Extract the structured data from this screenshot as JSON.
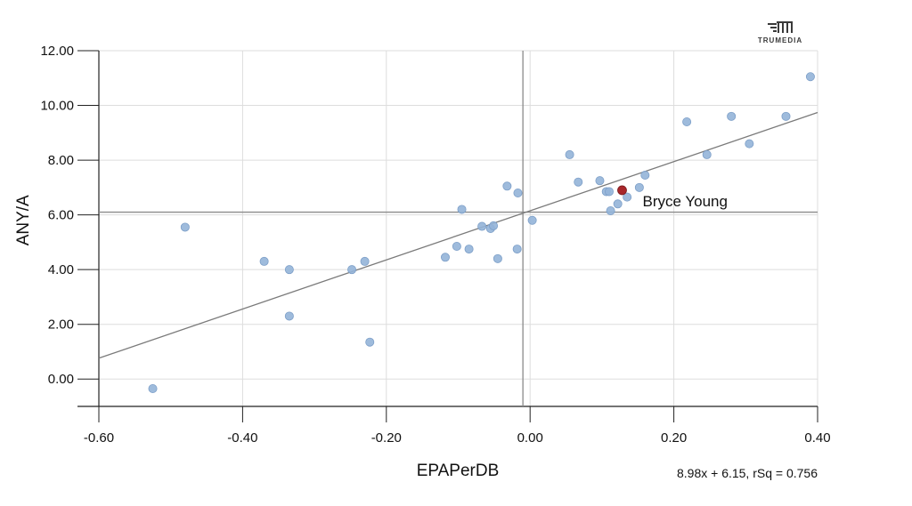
{
  "logo": {
    "text": "TRUMEDIA"
  },
  "chart_data": {
    "type": "scatter",
    "xlabel": "EPAPerDB",
    "ylabel": "ANY/A",
    "xlim": [
      -0.6,
      0.4
    ],
    "ylim": [
      -1.0,
      12.0
    ],
    "x_ticks": [
      -0.6,
      -0.4,
      -0.2,
      0.0,
      0.2,
      0.4
    ],
    "x_tick_labels": [
      "-0.60",
      "-0.40",
      "-0.20",
      "0.00",
      "0.20",
      "0.40"
    ],
    "y_ticks": [
      0,
      2,
      4,
      6,
      8,
      10,
      12
    ],
    "y_tick_labels": [
      "0.00",
      "2.00",
      "4.00",
      "6.00",
      "8.00",
      "10.00",
      "12.00"
    ],
    "grid": true,
    "mean_lines": {
      "x": -0.01,
      "y": 6.1
    },
    "trendline": {
      "slope": 8.98,
      "intercept": 6.15,
      "label": "8.98x + 6.15, rSq = 0.756"
    },
    "colors": {
      "points": "#94b4d8",
      "highlight": "#a8262a",
      "trend": "#7a7a7a",
      "grid": "#dddddd",
      "axis": "#222222"
    },
    "highlight": {
      "label": "Bryce Young",
      "x": 0.128,
      "y": 6.9
    },
    "points": [
      {
        "x": -0.525,
        "y": -0.35
      },
      {
        "x": -0.48,
        "y": 5.55
      },
      {
        "x": -0.37,
        "y": 4.3
      },
      {
        "x": -0.335,
        "y": 4.0
      },
      {
        "x": -0.335,
        "y": 2.3
      },
      {
        "x": -0.248,
        "y": 4.0
      },
      {
        "x": -0.23,
        "y": 4.3
      },
      {
        "x": -0.223,
        "y": 1.35
      },
      {
        "x": -0.118,
        "y": 4.45
      },
      {
        "x": -0.102,
        "y": 4.85
      },
      {
        "x": -0.095,
        "y": 6.2
      },
      {
        "x": -0.085,
        "y": 4.75
      },
      {
        "x": -0.067,
        "y": 5.58
      },
      {
        "x": -0.055,
        "y": 5.5
      },
      {
        "x": -0.051,
        "y": 5.6
      },
      {
        "x": -0.045,
        "y": 4.4
      },
      {
        "x": -0.032,
        "y": 7.05
      },
      {
        "x": -0.018,
        "y": 4.75
      },
      {
        "x": -0.017,
        "y": 6.8
      },
      {
        "x": 0.003,
        "y": 5.8
      },
      {
        "x": 0.055,
        "y": 8.2
      },
      {
        "x": 0.067,
        "y": 7.2
      },
      {
        "x": 0.097,
        "y": 7.25
      },
      {
        "x": 0.106,
        "y": 6.85
      },
      {
        "x": 0.11,
        "y": 6.85
      },
      {
        "x": 0.112,
        "y": 6.15
      },
      {
        "x": 0.122,
        "y": 6.4
      },
      {
        "x": 0.135,
        "y": 6.65
      },
      {
        "x": 0.152,
        "y": 7.0
      },
      {
        "x": 0.16,
        "y": 7.45
      },
      {
        "x": 0.218,
        "y": 9.4
      },
      {
        "x": 0.246,
        "y": 8.2
      },
      {
        "x": 0.28,
        "y": 9.6
      },
      {
        "x": 0.305,
        "y": 8.6
      },
      {
        "x": 0.356,
        "y": 9.6
      },
      {
        "x": 0.39,
        "y": 11.05
      }
    ]
  }
}
